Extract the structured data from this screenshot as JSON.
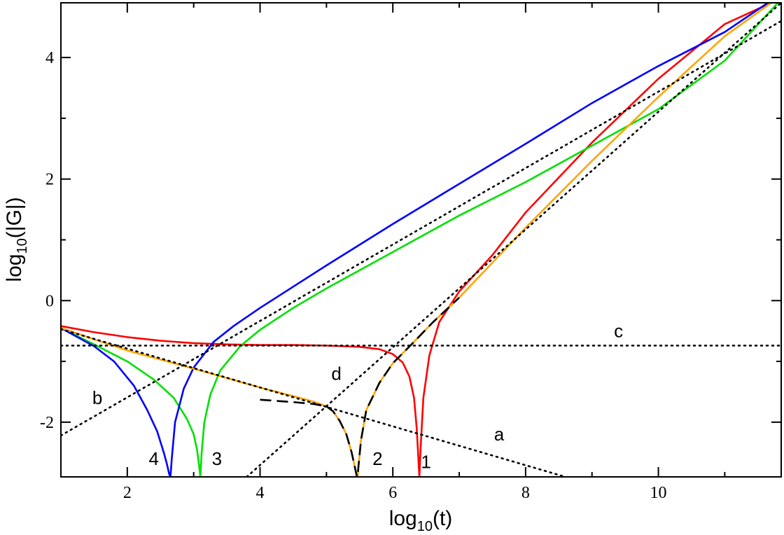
{
  "chart_data": {
    "type": "line",
    "xlabel": {
      "prefix": "log",
      "sub": "10",
      "suffix": "(t)"
    },
    "ylabel": {
      "prefix": "log",
      "sub": "10",
      "suffix": "(|G|)"
    },
    "xlim": [
      1.0,
      11.85
    ],
    "ylim": [
      -2.9,
      4.9
    ],
    "xticks": [
      2,
      4,
      6,
      8,
      10
    ],
    "yticks": [
      -2,
      0,
      2,
      4
    ],
    "xtick_labels": [
      "2",
      "4",
      "6",
      "8",
      "10"
    ],
    "ytick_labels": [
      "-2",
      "0",
      "2",
      "4"
    ],
    "grid": false,
    "series": [
      {
        "color": "#ff0000",
        "style": "solid",
        "x": [
          1.0,
          1.5,
          2.0,
          2.5,
          3.0,
          3.5,
          4.0,
          4.5,
          5.0,
          5.5,
          5.8,
          6.0,
          6.15,
          6.25,
          6.32,
          6.36,
          6.385,
          6.4,
          6.42,
          6.46,
          6.55,
          6.7,
          7.0,
          7.5,
          8.0,
          9.0,
          10.0,
          11.0,
          11.7
        ],
        "y": [
          -0.42,
          -0.52,
          -0.6,
          -0.66,
          -0.7,
          -0.72,
          -0.73,
          -0.73,
          -0.74,
          -0.76,
          -0.8,
          -0.88,
          -1.02,
          -1.25,
          -1.6,
          -2.1,
          -2.6,
          -2.9,
          -2.4,
          -1.6,
          -0.9,
          -0.35,
          0.15,
          0.75,
          1.45,
          2.6,
          3.65,
          4.55,
          4.9
        ]
      },
      {
        "color": "#00e000",
        "style": "solid",
        "x": [
          1.0,
          1.5,
          2.0,
          2.4,
          2.7,
          2.9,
          3.0,
          3.05,
          3.08,
          3.1,
          3.12,
          3.16,
          3.25,
          3.4,
          3.7,
          4.0,
          4.5,
          5.0,
          6.0,
          7.0,
          8.0,
          9.0,
          10.0,
          11.0,
          11.8
        ],
        "y": [
          -0.45,
          -0.72,
          -1.0,
          -1.3,
          -1.6,
          -1.95,
          -2.2,
          -2.45,
          -2.7,
          -2.9,
          -2.5,
          -2.0,
          -1.55,
          -1.15,
          -0.75,
          -0.48,
          -0.12,
          0.2,
          0.8,
          1.4,
          1.95,
          2.55,
          3.15,
          3.95,
          4.9
        ]
      },
      {
        "color": "#0000ff",
        "style": "solid",
        "x": [
          1.0,
          1.5,
          1.8,
          2.1,
          2.3,
          2.45,
          2.55,
          2.6,
          2.63,
          2.65,
          2.67,
          2.72,
          2.85,
          3.0,
          3.3,
          3.6,
          4.0,
          5.0,
          6.0,
          7.0,
          8.0,
          9.0,
          10.0,
          11.0,
          11.65
        ],
        "y": [
          -0.45,
          -0.75,
          -1.0,
          -1.4,
          -1.8,
          -2.15,
          -2.5,
          -2.7,
          -2.85,
          -2.9,
          -2.6,
          -2.0,
          -1.45,
          -1.1,
          -0.68,
          -0.42,
          -0.12,
          0.58,
          1.26,
          1.92,
          2.58,
          3.25,
          3.86,
          4.42,
          4.9
        ]
      },
      {
        "color": "#ffa500",
        "style": "solid",
        "x": [
          1.0,
          2.0,
          3.0,
          4.0,
          4.5,
          4.8,
          5.0,
          5.1,
          5.2,
          5.3,
          5.38,
          5.43,
          5.46,
          5.47,
          5.48,
          5.52,
          5.6,
          5.8,
          6.0,
          6.3,
          6.6,
          7.0,
          8.0,
          9.0,
          10.0,
          11.0,
          11.7
        ],
        "y": [
          -0.45,
          -0.82,
          -1.12,
          -1.43,
          -1.57,
          -1.66,
          -1.74,
          -1.82,
          -1.98,
          -2.2,
          -2.5,
          -2.75,
          -2.9,
          -2.9,
          -2.75,
          -2.3,
          -1.8,
          -1.35,
          -1.03,
          -0.7,
          -0.36,
          0.05,
          1.2,
          2.3,
          3.35,
          4.35,
          4.9
        ]
      },
      {
        "color": "#000000",
        "style": "dashed",
        "x": [
          4.0,
          4.5,
          4.8,
          5.0,
          5.1,
          5.2,
          5.3,
          5.38,
          5.43,
          5.46,
          5.47,
          5.48,
          5.52,
          5.6,
          5.8,
          6.0,
          6.3,
          6.6,
          7.0
        ],
        "y": [
          -1.63,
          -1.67,
          -1.7,
          -1.74,
          -1.82,
          -1.98,
          -2.2,
          -2.5,
          -2.75,
          -2.9,
          -2.9,
          -2.75,
          -2.3,
          -1.8,
          -1.35,
          -1.03,
          -0.7,
          -0.36,
          0.05
        ]
      },
      {
        "color": "#000000",
        "style": "dotted",
        "x": [
          1.0,
          8.6
        ],
        "y": [
          -0.47,
          -2.9
        ]
      },
      {
        "color": "#000000",
        "style": "dotted",
        "x": [
          1.0,
          11.85
        ],
        "y": [
          -2.22,
          4.6
        ]
      },
      {
        "color": "#000000",
        "style": "dotted",
        "x": [
          1.0,
          11.85
        ],
        "y": [
          -0.74,
          -0.74
        ]
      },
      {
        "color": "#000000",
        "style": "dotted",
        "x": [
          3.8,
          11.85
        ],
        "y": [
          -2.9,
          4.9
        ]
      }
    ],
    "annotations": [
      {
        "text": "a",
        "x": 7.6,
        "y": -2.2
      },
      {
        "text": "b",
        "x": 1.55,
        "y": -1.6
      },
      {
        "text": "c",
        "x": 9.4,
        "y": -0.5
      },
      {
        "text": "d",
        "x": 5.15,
        "y": -1.2
      },
      {
        "text": "1",
        "x": 6.5,
        "y": -2.65
      },
      {
        "text": "2",
        "x": 5.77,
        "y": -2.6
      },
      {
        "text": "3",
        "x": 3.35,
        "y": -2.6
      },
      {
        "text": "4",
        "x": 2.4,
        "y": -2.6
      }
    ]
  }
}
